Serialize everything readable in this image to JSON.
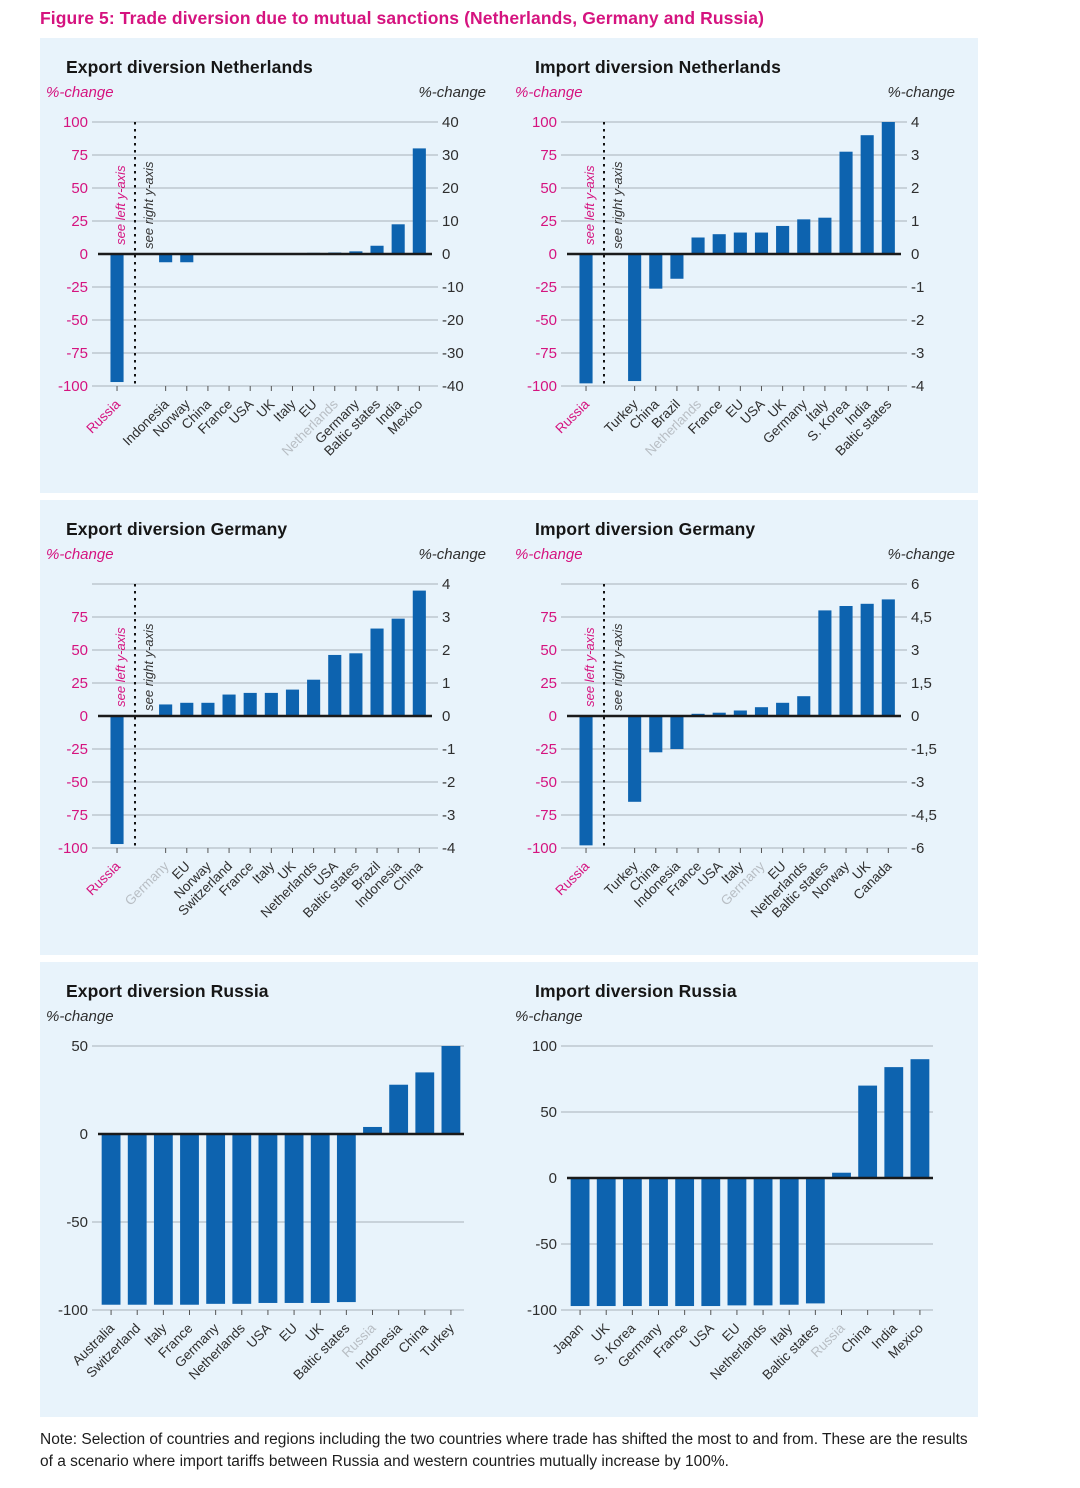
{
  "figure_title": "Figure 5: Trade diversion due to mutual sanctions (Netherlands, Germany and Russia)",
  "note": "Note: Selection of countries and regions including the two countries where trade has shifted the most to and from. These are the results of a scenario where import tariffs between Russia and western countries mutually increase by 100%.",
  "colors": {
    "bar": "#0d63af",
    "panel_bg": "#e8f3fb",
    "pink": "#d5137f",
    "dark_text": "#2e2e2e",
    "gray_label": "#b8bec4",
    "grid": "#a8b2ba",
    "zero_line": "#1a1a1a",
    "tick": "#555555"
  },
  "chart_data": [
    {
      "type": "bar",
      "title": "Export diversion Netherlands",
      "left_unit": "%-change",
      "right_unit": "%-change",
      "left_label_color": "pink",
      "left_range": [
        -100,
        100
      ],
      "right_range": [
        -40,
        40
      ],
      "gridlines": [
        100,
        75,
        50,
        25,
        0,
        -25,
        -50,
        -75,
        -100
      ],
      "left_labels": [
        {
          "t": "100",
          "v": 100
        },
        {
          "t": "75",
          "v": 75
        },
        {
          "t": "50",
          "v": 50
        },
        {
          "t": "25",
          "v": 25
        },
        {
          "t": "0",
          "v": 0
        },
        {
          "t": "-25",
          "v": -25
        },
        {
          "t": "-50",
          "v": -50
        },
        {
          "t": "-75",
          "v": -75
        },
        {
          "t": "-100",
          "v": -100
        }
      ],
      "right_labels": [
        {
          "t": "40",
          "v": 40
        },
        {
          "t": "30",
          "v": 30
        },
        {
          "t": "20",
          "v": 20
        },
        {
          "t": "10",
          "v": 10
        },
        {
          "t": "0",
          "v": 0
        },
        {
          "t": "-10",
          "v": -10
        },
        {
          "t": "-20",
          "v": -20
        },
        {
          "t": "-30",
          "v": -30
        },
        {
          "t": "-40",
          "v": -40
        }
      ],
      "separator": true,
      "see_left": "see left y-axis",
      "see_right": "see right y-axis",
      "bars": [
        {
          "c": "Russia",
          "v": -97,
          "axis": "left",
          "lc": "pink"
        },
        {
          "c": "Indonesia",
          "v": -2.5,
          "axis": "right"
        },
        {
          "c": "Norway",
          "v": -2.5,
          "axis": "right"
        },
        {
          "c": "China",
          "v": 0,
          "axis": "right"
        },
        {
          "c": "France",
          "v": 0.05,
          "axis": "right"
        },
        {
          "c": "USA",
          "v": 0.1,
          "axis": "right"
        },
        {
          "c": "UK",
          "v": 0.15,
          "axis": "right"
        },
        {
          "c": "Italy",
          "v": 0.3,
          "axis": "right"
        },
        {
          "c": "EU",
          "v": 0.35,
          "axis": "right"
        },
        {
          "c": "Netherlands",
          "v": 0.45,
          "axis": "right",
          "lc": "gray"
        },
        {
          "c": "Germany",
          "v": 0.8,
          "axis": "right"
        },
        {
          "c": "Baltic states",
          "v": 2.5,
          "axis": "right"
        },
        {
          "c": "India",
          "v": 9,
          "axis": "right"
        },
        {
          "c": "Mexico",
          "v": 32,
          "axis": "right"
        }
      ]
    },
    {
      "type": "bar",
      "title": "Import diversion Netherlands",
      "left_unit": "%-change",
      "right_unit": "%-change",
      "left_label_color": "pink",
      "left_range": [
        -100,
        100
      ],
      "right_range": [
        -4,
        4
      ],
      "gridlines": [
        100,
        75,
        50,
        25,
        0,
        -25,
        -50,
        -75,
        -100
      ],
      "left_labels": [
        {
          "t": "100",
          "v": 100
        },
        {
          "t": "75",
          "v": 75
        },
        {
          "t": "50",
          "v": 50
        },
        {
          "t": "25",
          "v": 25
        },
        {
          "t": "0",
          "v": 0
        },
        {
          "t": "-25",
          "v": -25
        },
        {
          "t": "-50",
          "v": -50
        },
        {
          "t": "-75",
          "v": -75
        },
        {
          "t": "-100",
          "v": -100
        }
      ],
      "right_labels": [
        {
          "t": "4",
          "v": 4
        },
        {
          "t": "3",
          "v": 3
        },
        {
          "t": "2",
          "v": 2
        },
        {
          "t": "1",
          "v": 1
        },
        {
          "t": "0",
          "v": 0
        },
        {
          "t": "-1",
          "v": -1
        },
        {
          "t": "-2",
          "v": -2
        },
        {
          "t": "-3",
          "v": -3
        },
        {
          "t": "-4",
          "v": -4
        }
      ],
      "separator": true,
      "see_left": "see left y-axis",
      "see_right": "see right y-axis",
      "bars": [
        {
          "c": "Russia",
          "v": -98,
          "axis": "left",
          "lc": "pink"
        },
        {
          "c": "Turkey",
          "v": -3.85,
          "axis": "right"
        },
        {
          "c": "China",
          "v": -1.05,
          "axis": "right"
        },
        {
          "c": "Brazil",
          "v": -0.75,
          "axis": "right"
        },
        {
          "c": "Netherlands",
          "v": 0.5,
          "axis": "right",
          "lc": "gray"
        },
        {
          "c": "France",
          "v": 0.6,
          "axis": "right"
        },
        {
          "c": "EU",
          "v": 0.65,
          "axis": "right"
        },
        {
          "c": "USA",
          "v": 0.65,
          "axis": "right"
        },
        {
          "c": "UK",
          "v": 0.85,
          "axis": "right"
        },
        {
          "c": "Germany",
          "v": 1.05,
          "axis": "right"
        },
        {
          "c": "Italy",
          "v": 1.1,
          "axis": "right"
        },
        {
          "c": "S. Korea",
          "v": 3.1,
          "axis": "right"
        },
        {
          "c": "India",
          "v": 3.6,
          "axis": "right"
        },
        {
          "c": "Baltic states",
          "v": 4,
          "axis": "right"
        }
      ]
    },
    {
      "type": "bar",
      "title": "Export diversion Germany",
      "left_unit": "%-change",
      "right_unit": "%-change",
      "left_label_color": "pink",
      "left_range": [
        -100,
        100
      ],
      "right_range": [
        -4,
        4
      ],
      "gridlines": [
        100,
        75,
        50,
        25,
        0,
        -25,
        -50,
        -75,
        -100
      ],
      "left_labels": [
        {
          "t": "75",
          "v": 75
        },
        {
          "t": "50",
          "v": 50
        },
        {
          "t": "25",
          "v": 25
        },
        {
          "t": "0",
          "v": 0
        },
        {
          "t": "-25",
          "v": -25
        },
        {
          "t": "-50",
          "v": -50
        },
        {
          "t": "-75",
          "v": -75
        },
        {
          "t": "-100",
          "v": -100
        }
      ],
      "right_labels": [
        {
          "t": "4",
          "v": 4
        },
        {
          "t": "3",
          "v": 3
        },
        {
          "t": "2",
          "v": 2
        },
        {
          "t": "1",
          "v": 1
        },
        {
          "t": "0",
          "v": 0
        },
        {
          "t": "-1",
          "v": -1
        },
        {
          "t": "-2",
          "v": -2
        },
        {
          "t": "-3",
          "v": -3
        },
        {
          "t": "-4",
          "v": -4
        }
      ],
      "separator": true,
      "see_left": "see left y-axis",
      "see_right": "see right y-axis",
      "bars": [
        {
          "c": "Russia",
          "v": -97,
          "axis": "left",
          "lc": "pink"
        },
        {
          "c": "Germany",
          "v": 0.35,
          "axis": "right",
          "lc": "gray"
        },
        {
          "c": "EU",
          "v": 0.4,
          "axis": "right"
        },
        {
          "c": "Norway",
          "v": 0.4,
          "axis": "right"
        },
        {
          "c": "Switzerland",
          "v": 0.65,
          "axis": "right"
        },
        {
          "c": "France",
          "v": 0.7,
          "axis": "right"
        },
        {
          "c": "Italy",
          "v": 0.7,
          "axis": "right"
        },
        {
          "c": "UK",
          "v": 0.8,
          "axis": "right"
        },
        {
          "c": "Netherlands",
          "v": 1.1,
          "axis": "right"
        },
        {
          "c": "USA",
          "v": 1.85,
          "axis": "right"
        },
        {
          "c": "Baltic states",
          "v": 1.9,
          "axis": "right"
        },
        {
          "c": "Brazil",
          "v": 2.65,
          "axis": "right"
        },
        {
          "c": "Indonesia",
          "v": 2.95,
          "axis": "right"
        },
        {
          "c": "China",
          "v": 3.8,
          "axis": "right"
        }
      ]
    },
    {
      "type": "bar",
      "title": "Import diversion Germany",
      "left_unit": "%-change",
      "right_unit": "%-change",
      "left_label_color": "pink",
      "left_range": [
        -100,
        100
      ],
      "right_range": [
        -6,
        6
      ],
      "gridlines": [
        100,
        75,
        50,
        25,
        0,
        -25,
        -50,
        -75,
        -100
      ],
      "left_labels": [
        {
          "t": "75",
          "v": 75
        },
        {
          "t": "50",
          "v": 50
        },
        {
          "t": "25",
          "v": 25
        },
        {
          "t": "0",
          "v": 0
        },
        {
          "t": "-25",
          "v": -25
        },
        {
          "t": "-50",
          "v": -50
        },
        {
          "t": "-75",
          "v": -75
        },
        {
          "t": "-100",
          "v": -100
        }
      ],
      "right_labels": [
        {
          "t": "6",
          "v": 6
        },
        {
          "t": "4,5",
          "v": 4.5
        },
        {
          "t": "3",
          "v": 3
        },
        {
          "t": "1,5",
          "v": 1.5
        },
        {
          "t": "0",
          "v": 0
        },
        {
          "t": "-1,5",
          "v": -1.5
        },
        {
          "t": "-3",
          "v": -3
        },
        {
          "t": "-4,5",
          "v": -4.5
        },
        {
          "t": "-6",
          "v": -6
        }
      ],
      "separator": true,
      "see_left": "see left y-axis",
      "see_right": "see right y-axis",
      "bars": [
        {
          "c": "Russia",
          "v": -98,
          "axis": "left",
          "lc": "pink"
        },
        {
          "c": "Turkey",
          "v": -3.9,
          "axis": "right"
        },
        {
          "c": "China",
          "v": -1.65,
          "axis": "right"
        },
        {
          "c": "Indonesia",
          "v": -1.5,
          "axis": "right"
        },
        {
          "c": "France",
          "v": 0.1,
          "axis": "right"
        },
        {
          "c": "USA",
          "v": 0.15,
          "axis": "right"
        },
        {
          "c": "Italy",
          "v": 0.25,
          "axis": "right"
        },
        {
          "c": "Germany",
          "v": 0.4,
          "axis": "right",
          "lc": "gray"
        },
        {
          "c": "EU",
          "v": 0.6,
          "axis": "right"
        },
        {
          "c": "Netherlands",
          "v": 0.9,
          "axis": "right"
        },
        {
          "c": "Baltic states",
          "v": 4.8,
          "axis": "right"
        },
        {
          "c": "Norway",
          "v": 5,
          "axis": "right"
        },
        {
          "c": "UK",
          "v": 5.1,
          "axis": "right"
        },
        {
          "c": "Canada",
          "v": 5.3,
          "axis": "right"
        }
      ]
    },
    {
      "type": "bar",
      "title": "Export diversion Russia",
      "left_unit": "%-change",
      "right_unit": null,
      "left_label_color": "dark",
      "left_range": [
        -100,
        50
      ],
      "gridlines": [
        50,
        0,
        -50,
        -100
      ],
      "left_labels": [
        {
          "t": "50",
          "v": 50
        },
        {
          "t": "0",
          "v": 0
        },
        {
          "t": "-50",
          "v": -50
        },
        {
          "t": "-100",
          "v": -100
        }
      ],
      "separator": false,
      "bars": [
        {
          "c": "Australia",
          "v": -97,
          "axis": "left"
        },
        {
          "c": "Switzerland",
          "v": -97,
          "axis": "left"
        },
        {
          "c": "Italy",
          "v": -97,
          "axis": "left"
        },
        {
          "c": "France",
          "v": -97,
          "axis": "left"
        },
        {
          "c": "Germany",
          "v": -96.5,
          "axis": "left"
        },
        {
          "c": "Netherlands",
          "v": -96.5,
          "axis": "left"
        },
        {
          "c": "USA",
          "v": -96,
          "axis": "left"
        },
        {
          "c": "EU",
          "v": -96,
          "axis": "left"
        },
        {
          "c": "UK",
          "v": -96,
          "axis": "left"
        },
        {
          "c": "Baltic states",
          "v": -95.5,
          "axis": "left"
        },
        {
          "c": "Russia",
          "v": 4,
          "axis": "left",
          "lc": "gray"
        },
        {
          "c": "Indonesia",
          "v": 28,
          "axis": "left"
        },
        {
          "c": "China",
          "v": 35,
          "axis": "left"
        },
        {
          "c": "Turkey",
          "v": 50,
          "axis": "left"
        }
      ]
    },
    {
      "type": "bar",
      "title": "Import diversion Russia",
      "left_unit": "%-change",
      "right_unit": null,
      "left_label_color": "dark",
      "left_range": [
        -100,
        100
      ],
      "gridlines": [
        100,
        50,
        0,
        -50,
        -100
      ],
      "left_labels": [
        {
          "t": "100",
          "v": 100
        },
        {
          "t": "50",
          "v": 50
        },
        {
          "t": "0",
          "v": 0
        },
        {
          "t": "-50",
          "v": -50
        },
        {
          "t": "-100",
          "v": -100
        }
      ],
      "separator": false,
      "bars": [
        {
          "c": "Japan",
          "v": -97,
          "axis": "left"
        },
        {
          "c": "UK",
          "v": -97,
          "axis": "left"
        },
        {
          "c": "S. Korea",
          "v": -97,
          "axis": "left"
        },
        {
          "c": "Germany",
          "v": -97,
          "axis": "left"
        },
        {
          "c": "France",
          "v": -97,
          "axis": "left"
        },
        {
          "c": "USA",
          "v": -97,
          "axis": "left"
        },
        {
          "c": "EU",
          "v": -96.5,
          "axis": "left"
        },
        {
          "c": "Netherlands",
          "v": -96.5,
          "axis": "left"
        },
        {
          "c": "Italy",
          "v": -96,
          "axis": "left"
        },
        {
          "c": "Baltic states",
          "v": -95,
          "axis": "left"
        },
        {
          "c": "Russia",
          "v": 4,
          "axis": "left",
          "lc": "gray"
        },
        {
          "c": "China",
          "v": 70,
          "axis": "left"
        },
        {
          "c": "India",
          "v": 84,
          "axis": "left"
        },
        {
          "c": "Mexico",
          "v": 90,
          "axis": "left"
        }
      ]
    }
  ]
}
